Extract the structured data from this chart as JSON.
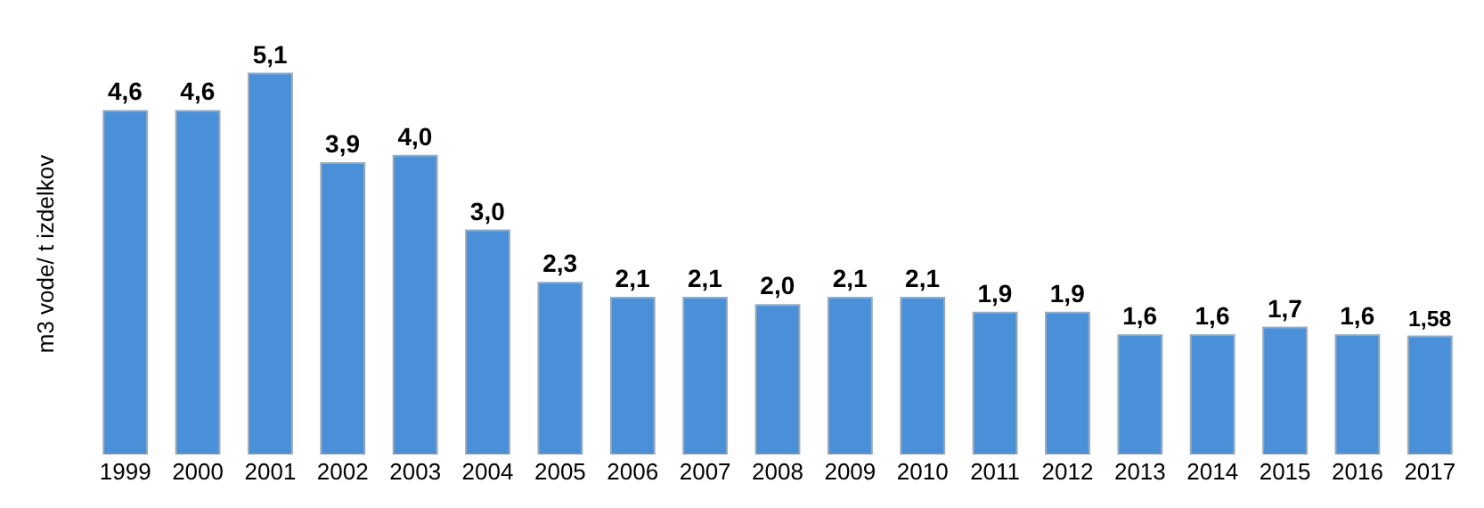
{
  "chart_data": {
    "type": "bar",
    "ylabel": "m3 vode/ t izdelkov",
    "categories": [
      "1999",
      "2000",
      "2001",
      "2002",
      "2003",
      "2004",
      "2005",
      "2006",
      "2007",
      "2008",
      "2009",
      "2010",
      "2011",
      "2012",
      "2013",
      "2014",
      "2015",
      "2016",
      "2017"
    ],
    "values": [
      4.6,
      4.6,
      5.1,
      3.9,
      4.0,
      3.0,
      2.3,
      2.1,
      2.1,
      2.0,
      2.1,
      2.1,
      1.9,
      1.9,
      1.6,
      1.6,
      1.7,
      1.6,
      1.58
    ],
    "value_labels": [
      "4,6",
      "4,6",
      "5,1",
      "3,9",
      "4,0",
      "3,0",
      "2,3",
      "2,1",
      "2,1",
      "2,0",
      "2,1",
      "2,1",
      "1,9",
      "1,9",
      "1,6",
      "1,6",
      "1,7",
      "1,6",
      "1,58"
    ],
    "color": "#4a90d9"
  }
}
